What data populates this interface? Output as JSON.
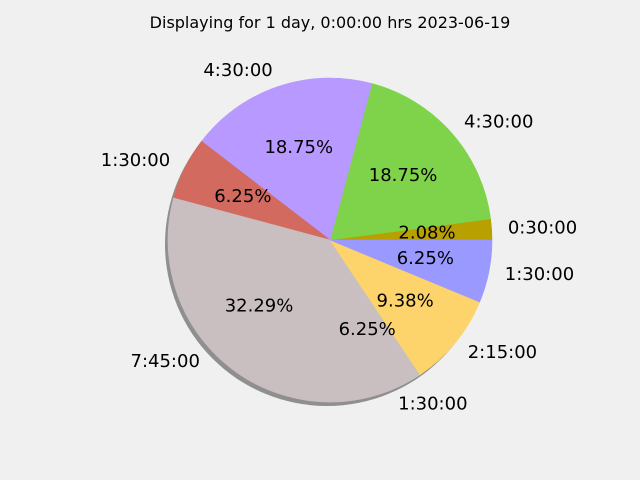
{
  "chart_data": {
    "type": "pie",
    "title": "Displaying for 1 day, 0:00:00 hrs 2023-06-19",
    "start_angle": 0,
    "direction": "counterclockwise",
    "shadow": true,
    "slices": [
      {
        "label": "0:30:00",
        "percent_label": "2.08%",
        "value": 2.08,
        "color": "#b8a000"
      },
      {
        "label": "4:30:00",
        "percent_label": "18.75%",
        "value": 18.75,
        "color": "#7fd34a"
      },
      {
        "label": "4:30:00",
        "percent_label": "18.75%",
        "value": 18.75,
        "color": "#b899ff"
      },
      {
        "label": "1:30:00",
        "percent_label": "6.25%",
        "value": 6.25,
        "color": "#d26a60"
      },
      {
        "label": "7:45:00",
        "percent_label": "32.29%",
        "value": 32.29,
        "color": "#c9bfc1"
      },
      {
        "label": "1:30:00",
        "percent_label": "6.25%",
        "value": 6.25,
        "color": "#c9bfc1"
      },
      {
        "label": "2:15:00",
        "percent_label": "9.38%",
        "value": 9.38,
        "color": "#fdd36b"
      },
      {
        "label": "1:30:00",
        "percent_label": "6.25%",
        "value": 6.25,
        "color": "#9999ff"
      }
    ]
  }
}
